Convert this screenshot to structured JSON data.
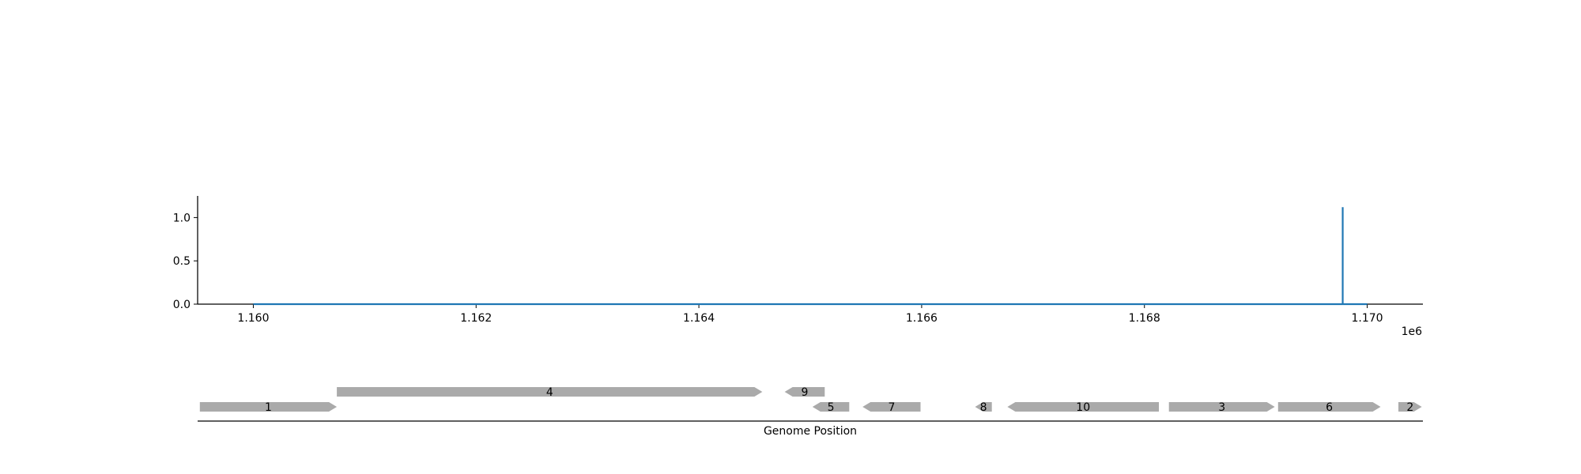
{
  "chart_data": {
    "type": "line",
    "title": "",
    "xlabel": "",
    "ylabel": "",
    "xlim": [
      1159500,
      1170500
    ],
    "ylim": [
      0.0,
      1.25
    ],
    "x_ticks": [
      1160000,
      1162000,
      1164000,
      1166000,
      1168000,
      1170000
    ],
    "x_tick_labels": [
      "1.160",
      "1.162",
      "1.164",
      "1.166",
      "1.168",
      "1.170"
    ],
    "x_offset_label": "1e6",
    "y_ticks": [
      0.0,
      0.5,
      1.0
    ],
    "y_tick_labels": [
      "0.0",
      "0.5",
      "1.0"
    ],
    "grid": false,
    "legend": "none",
    "line_color": "#1f77b4",
    "series": [
      {
        "x": [
          1160000,
          1169780,
          1169780,
          1169780,
          1169780,
          1170000
        ],
        "y": [
          0.0,
          0.0,
          1.12,
          1.12,
          0.0,
          0.0
        ]
      }
    ]
  },
  "gene_track": {
    "xlabel": "Genome Position",
    "color": "#aaaaaa",
    "genes": [
      {
        "label": "1",
        "start": 1159520,
        "end": 1160750,
        "strand": "+",
        "row": 0
      },
      {
        "label": "4",
        "start": 1160750,
        "end": 1164570,
        "strand": "+",
        "row": 1
      },
      {
        "label": "9",
        "start": 1164770,
        "end": 1165130,
        "strand": "-",
        "row": 1
      },
      {
        "label": "5",
        "start": 1165020,
        "end": 1165350,
        "strand": "-",
        "row": 0
      },
      {
        "label": "7",
        "start": 1165470,
        "end": 1165990,
        "strand": "-",
        "row": 0
      },
      {
        "label": "8",
        "start": 1166480,
        "end": 1166630,
        "strand": "-",
        "row": 0
      },
      {
        "label": "10",
        "start": 1166770,
        "end": 1168130,
        "strand": "-",
        "row": 0
      },
      {
        "label": "3",
        "start": 1168220,
        "end": 1169170,
        "strand": "+",
        "row": 0
      },
      {
        "label": "6",
        "start": 1169200,
        "end": 1170120,
        "strand": "+",
        "row": 0
      },
      {
        "label": "2",
        "start": 1170280,
        "end": 1170490,
        "strand": "+",
        "row": 0
      }
    ]
  }
}
